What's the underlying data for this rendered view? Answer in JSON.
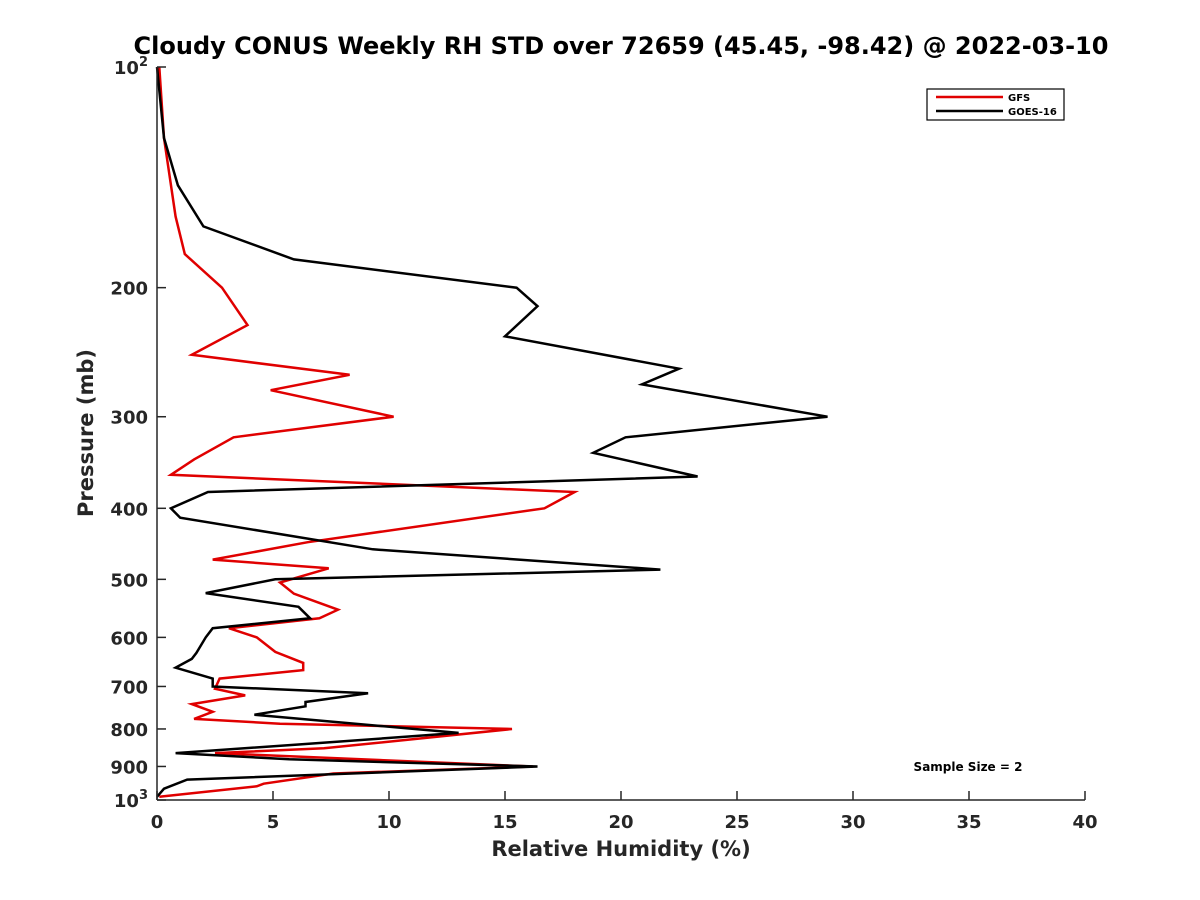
{
  "chart_data": {
    "type": "line",
    "title": "Cloudy CONUS Weekly RH STD over 72659 (45.45, -98.42) @ 2022-03-10",
    "xlabel": "Relative Humidity (%)",
    "ylabel": "Pressure (mb)",
    "xlim": [
      0,
      40
    ],
    "ylim": [
      100,
      1000
    ],
    "y_scale": "log",
    "y_reversed": true,
    "grid": false,
    "legend_position": "top-right",
    "x_ticks": [
      0,
      5,
      10,
      15,
      20,
      25,
      30,
      35,
      40
    ],
    "y_ticks": [
      {
        "value": 100,
        "label": "10",
        "sup": "2"
      },
      {
        "value": 200,
        "label": "200",
        "sup": ""
      },
      {
        "value": 300,
        "label": "300",
        "sup": ""
      },
      {
        "value": 400,
        "label": "400",
        "sup": ""
      },
      {
        "value": 500,
        "label": "500",
        "sup": ""
      },
      {
        "value": 600,
        "label": "600",
        "sup": ""
      },
      {
        "value": 700,
        "label": "700",
        "sup": ""
      },
      {
        "value": 800,
        "label": "800",
        "sup": ""
      },
      {
        "value": 900,
        "label": "900",
        "sup": ""
      },
      {
        "value": 1000,
        "label": "10",
        "sup": "3"
      }
    ],
    "annotation": "Sample Size = 2",
    "series": [
      {
        "name": "GFS",
        "color": "#e00000",
        "points": [
          [
            0.1,
            100
          ],
          [
            0.3,
            125
          ],
          [
            0.8,
            160
          ],
          [
            1.2,
            180
          ],
          [
            2.8,
            200
          ],
          [
            3.9,
            225
          ],
          [
            1.5,
            247
          ],
          [
            8.3,
            263
          ],
          [
            4.9,
            276
          ],
          [
            10.2,
            300
          ],
          [
            3.3,
            320
          ],
          [
            1.6,
            343
          ],
          [
            0.6,
            360
          ],
          [
            18.0,
            380
          ],
          [
            16.7,
            400
          ],
          [
            6.5,
            445
          ],
          [
            2.4,
            470
          ],
          [
            7.4,
            483
          ],
          [
            5.3,
            505
          ],
          [
            5.9,
            523
          ],
          [
            7.8,
            550
          ],
          [
            7.0,
            565
          ],
          [
            3.1,
            583
          ],
          [
            4.3,
            600
          ],
          [
            5.1,
            628
          ],
          [
            6.3,
            650
          ],
          [
            6.3,
            665
          ],
          [
            2.7,
            683
          ],
          [
            2.5,
            705
          ],
          [
            3.8,
            720
          ],
          [
            1.5,
            740
          ],
          [
            2.4,
            758
          ],
          [
            1.6,
            775
          ],
          [
            5.3,
            787
          ],
          [
            15.3,
            800
          ],
          [
            7.2,
            850
          ],
          [
            2.5,
            863
          ],
          [
            16.2,
            900
          ],
          [
            7.6,
            920
          ],
          [
            4.6,
            950
          ],
          [
            4.3,
            958
          ],
          [
            0.1,
            990
          ]
        ]
      },
      {
        "name": "GOES-16",
        "color": "#000000",
        "points": [
          [
            0.0,
            100
          ],
          [
            0.3,
            125
          ],
          [
            0.9,
            145
          ],
          [
            2.0,
            165
          ],
          [
            5.9,
            183
          ],
          [
            15.5,
            200
          ],
          [
            16.4,
            212
          ],
          [
            15.0,
            233
          ],
          [
            22.5,
            258
          ],
          [
            20.9,
            271
          ],
          [
            28.9,
            300
          ],
          [
            20.2,
            320
          ],
          [
            18.8,
            336
          ],
          [
            23.3,
            362
          ],
          [
            2.2,
            380
          ],
          [
            0.6,
            400
          ],
          [
            1.0,
            412
          ],
          [
            9.3,
            455
          ],
          [
            21.7,
            485
          ],
          [
            5.1,
            500
          ],
          [
            2.1,
            522
          ],
          [
            6.1,
            545
          ],
          [
            6.6,
            565
          ],
          [
            2.4,
            583
          ],
          [
            2.1,
            600
          ],
          [
            1.7,
            630
          ],
          [
            1.5,
            642
          ],
          [
            0.8,
            660
          ],
          [
            2.4,
            683
          ],
          [
            2.4,
            700
          ],
          [
            9.1,
            715
          ],
          [
            6.4,
            735
          ],
          [
            6.4,
            745
          ],
          [
            4.2,
            765
          ],
          [
            13.0,
            810
          ],
          [
            6.1,
            840
          ],
          [
            0.8,
            863
          ],
          [
            5.7,
            880
          ],
          [
            16.4,
            900
          ],
          [
            1.3,
            938
          ],
          [
            0.3,
            965
          ],
          [
            0.0,
            990
          ]
        ]
      }
    ]
  }
}
